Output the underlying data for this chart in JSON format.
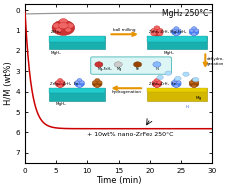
{
  "title": "MgH₂ 250°C",
  "xlabel": "Time (min)",
  "ylabel": "H/M (wt%)",
  "xlim": [
    0,
    30
  ],
  "ylim": [
    7.5,
    -0.3
  ],
  "xticks": [
    0,
    5,
    10,
    15,
    20,
    25,
    30
  ],
  "yticks": [
    0,
    1,
    2,
    3,
    4,
    5,
    6,
    7
  ],
  "annotation": "+ 10wt% nano-ZrFe₂ 250°C",
  "line_gray_color": "#999999",
  "line_red_color": "#cc0000",
  "bg_color": "#ffffff",
  "teal": "#1aafaf",
  "teal_dark": "#0d8c8c",
  "yellow": "#d4b800",
  "arrow_orange": "#e89400",
  "legend_box_color": "#cceeff",
  "legend_box_edge": "#22aaaa"
}
